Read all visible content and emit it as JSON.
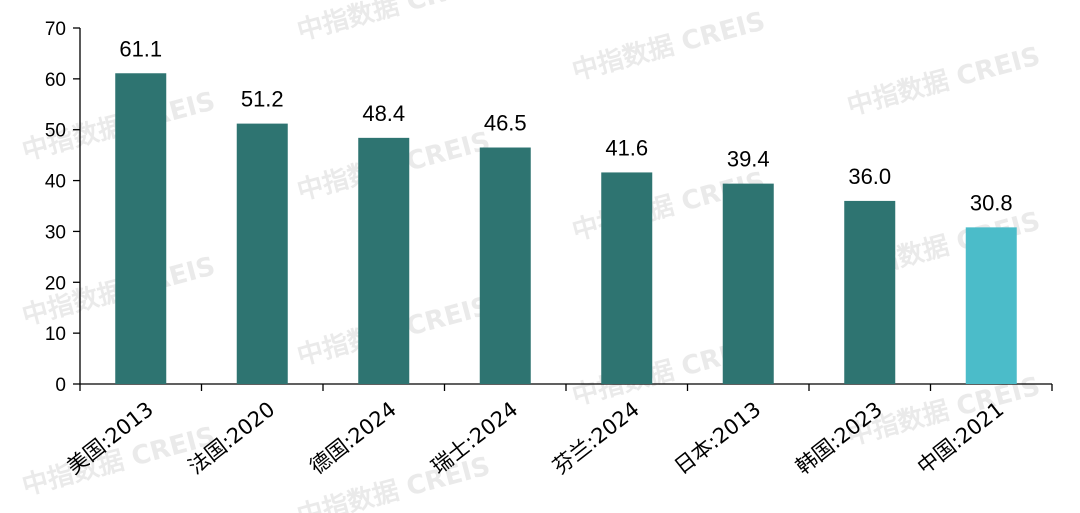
{
  "chart_data": {
    "type": "bar",
    "categories": [
      "美国:2013",
      "法国:2020",
      "德国:2024",
      "瑞士:2024",
      "芬兰:2024",
      "日本:2013",
      "韩国:2023",
      "中国:2021"
    ],
    "values": [
      61.1,
      51.2,
      48.4,
      46.5,
      41.6,
      39.4,
      36.0,
      30.8
    ],
    "data_labels": [
      "61.1",
      "51.2",
      "48.4",
      "46.5",
      "41.6",
      "39.4",
      "36.0",
      "30.8"
    ],
    "y_ticks": [
      "0",
      "10",
      "20",
      "30",
      "40",
      "50",
      "60",
      "70"
    ],
    "ylim": [
      0,
      70
    ],
    "grid": false,
    "colors": {
      "default": "#2e7471",
      "highlight": "#4bbcc9",
      "highlight_category": "中国:2021",
      "axis": "#000000"
    },
    "title": "",
    "xlabel": "",
    "ylabel": ""
  },
  "watermark": "中指数据 CREIS"
}
